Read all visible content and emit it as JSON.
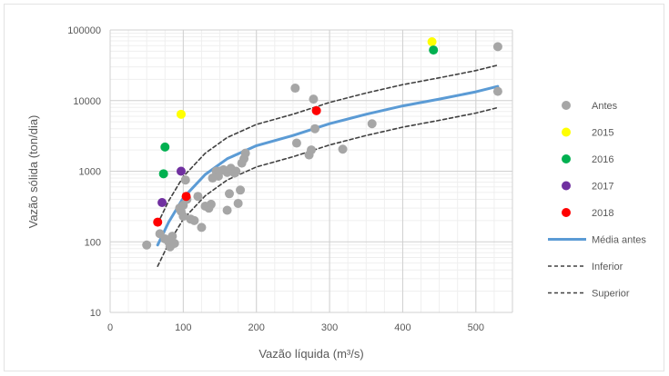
{
  "chart_data": {
    "type": "scatter",
    "xlabel": "Vazão líquida (m³/s)",
    "ylabel": "Vazão sólida (ton/dia)",
    "xlim": [
      0,
      550
    ],
    "ylim": [
      10,
      100000
    ],
    "y_scale": "log",
    "x_ticks": [
      0,
      100,
      200,
      300,
      400,
      500
    ],
    "x_tick_labels": [
      "0",
      "100",
      "200",
      "300",
      "400",
      "500"
    ],
    "y_ticks": [
      10,
      100,
      1000,
      10000,
      100000
    ],
    "y_tick_labels": [
      "10",
      "100",
      "1000",
      "10000",
      "100000"
    ],
    "grid": true,
    "legend_position": "right",
    "series": [
      {
        "name": "Antes",
        "kind": "points",
        "color": "#a6a6a6",
        "points": [
          [
            50,
            90
          ],
          [
            68,
            130
          ],
          [
            75,
            110
          ],
          [
            80,
            100
          ],
          [
            82,
            85
          ],
          [
            85,
            120
          ],
          [
            88,
            95
          ],
          [
            95,
            300
          ],
          [
            97,
            270
          ],
          [
            100,
            330
          ],
          [
            100,
            230
          ],
          [
            103,
            750
          ],
          [
            105,
            400
          ],
          [
            110,
            210
          ],
          [
            115,
            200
          ],
          [
            120,
            440
          ],
          [
            125,
            160
          ],
          [
            130,
            320
          ],
          [
            135,
            300
          ],
          [
            138,
            340
          ],
          [
            140,
            800
          ],
          [
            145,
            1000
          ],
          [
            148,
            850
          ],
          [
            150,
            1000
          ],
          [
            155,
            1050
          ],
          [
            160,
            280
          ],
          [
            160,
            960
          ],
          [
            163,
            480
          ],
          [
            165,
            1100
          ],
          [
            170,
            940
          ],
          [
            172,
            1000
          ],
          [
            175,
            350
          ],
          [
            178,
            540
          ],
          [
            180,
            1300
          ],
          [
            183,
            1500
          ],
          [
            185,
            1800
          ],
          [
            253,
            15000
          ],
          [
            255,
            2500
          ],
          [
            272,
            1700
          ],
          [
            275,
            2000
          ],
          [
            278,
            10500
          ],
          [
            280,
            4000
          ],
          [
            318,
            2050
          ],
          [
            358,
            4700
          ],
          [
            530,
            58000
          ],
          [
            530,
            13500
          ]
        ]
      },
      {
        "name": "2015",
        "kind": "points",
        "color": "#ffff00",
        "points": [
          [
            97,
            6400
          ],
          [
            440,
            68000
          ]
        ]
      },
      {
        "name": "2016",
        "kind": "points",
        "color": "#00b050",
        "points": [
          [
            75,
            2200
          ],
          [
            73,
            920
          ],
          [
            442,
            52000
          ]
        ]
      },
      {
        "name": "2017",
        "kind": "points",
        "color": "#7030a0",
        "points": [
          [
            71,
            360
          ],
          [
            97,
            1000
          ]
        ]
      },
      {
        "name": "2018",
        "kind": "points",
        "color": "#ff0000",
        "points": [
          [
            65,
            190
          ],
          [
            104,
            440
          ],
          [
            282,
            7200
          ]
        ]
      },
      {
        "name": "Média antes",
        "kind": "line",
        "color": "#5b9bd5",
        "points": [
          [
            65,
            90
          ],
          [
            80,
            190
          ],
          [
            100,
            420
          ],
          [
            130,
            900
          ],
          [
            160,
            1500
          ],
          [
            200,
            2300
          ],
          [
            250,
            3200
          ],
          [
            300,
            4700
          ],
          [
            350,
            6400
          ],
          [
            400,
            8400
          ],
          [
            450,
            10500
          ],
          [
            500,
            13300
          ],
          [
            530,
            15900
          ]
        ]
      },
      {
        "name": "Inferior",
        "kind": "line",
        "color": "#404040",
        "dashed": true,
        "points": [
          [
            65,
            45
          ],
          [
            80,
            95
          ],
          [
            100,
            210
          ],
          [
            130,
            450
          ],
          [
            160,
            750
          ],
          [
            200,
            1150
          ],
          [
            250,
            1600
          ],
          [
            300,
            2350
          ],
          [
            350,
            3200
          ],
          [
            400,
            4200
          ],
          [
            450,
            5250
          ],
          [
            500,
            6650
          ],
          [
            530,
            7950
          ]
        ]
      },
      {
        "name": "Superior",
        "kind": "line",
        "color": "#404040",
        "dashed": true,
        "points": [
          [
            65,
            180
          ],
          [
            80,
            380
          ],
          [
            100,
            840
          ],
          [
            130,
            1800
          ],
          [
            160,
            3000
          ],
          [
            200,
            4600
          ],
          [
            250,
            6400
          ],
          [
            300,
            9400
          ],
          [
            350,
            12800
          ],
          [
            400,
            16800
          ],
          [
            450,
            21000
          ],
          [
            500,
            26600
          ],
          [
            530,
            31800
          ]
        ]
      }
    ]
  }
}
